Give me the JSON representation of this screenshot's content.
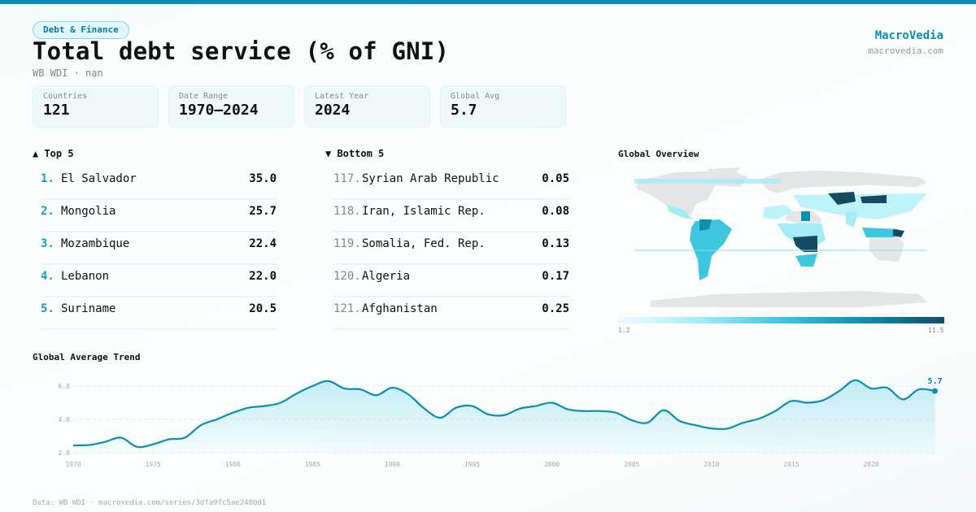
{
  "header": {
    "category": "Debt & Finance",
    "title": "Total debt service (% of GNI)",
    "subtitle": "WB WDI · nan",
    "brand": "MacroVedia",
    "brand_url": "macrovedia.com"
  },
  "stats": [
    {
      "label": "Countries",
      "value": "121"
    },
    {
      "label": "Date Range",
      "value": "1970–2024"
    },
    {
      "label": "Latest Year",
      "value": "2024"
    },
    {
      "label": "Global Avg",
      "value": "5.7"
    }
  ],
  "top": {
    "title": "▲ Top 5",
    "items": [
      {
        "rank": "1.",
        "name": "El Salvador",
        "value": "35.0"
      },
      {
        "rank": "2.",
        "name": "Mongolia",
        "value": "25.7"
      },
      {
        "rank": "3.",
        "name": "Mozambique",
        "value": "22.4"
      },
      {
        "rank": "4.",
        "name": "Lebanon",
        "value": "22.0"
      },
      {
        "rank": "5.",
        "name": "Suriname",
        "value": "20.5"
      }
    ]
  },
  "bottom": {
    "title": "▼ Bottom 5",
    "items": [
      {
        "rank": "117.",
        "name": "Syrian Arab Republic",
        "value": "0.05"
      },
      {
        "rank": "118.",
        "name": "Iran, Islamic Rep.",
        "value": "0.08"
      },
      {
        "rank": "119.",
        "name": "Somalia, Fed. Rep.",
        "value": "0.13"
      },
      {
        "rank": "120.",
        "name": "Algeria",
        "value": "0.17"
      },
      {
        "rank": "121.",
        "name": "Afghanistan",
        "value": "0.25"
      }
    ]
  },
  "map": {
    "title": "Global Overview",
    "legend_min": "1.2",
    "legend_max": "11.5",
    "colors": [
      "#f0fcfe",
      "#a6ecf8",
      "#3fc6df",
      "#0e8fae",
      "#154b62"
    ],
    "no_data": "#e4e6e8"
  },
  "chart_data": {
    "type": "area",
    "title": "Global Average Trend",
    "x": [
      1970,
      1971,
      1972,
      1973,
      1974,
      1975,
      1976,
      1977,
      1978,
      1979,
      1980,
      1981,
      1982,
      1983,
      1984,
      1985,
      1986,
      1987,
      1988,
      1989,
      1990,
      1991,
      1992,
      1993,
      1994,
      1995,
      1996,
      1997,
      1998,
      1999,
      2000,
      2001,
      2002,
      2003,
      2004,
      2005,
      2006,
      2007,
      2008,
      2009,
      2010,
      2011,
      2012,
      2013,
      2014,
      2015,
      2016,
      2017,
      2018,
      2019,
      2020,
      2021,
      2022,
      2023,
      2024
    ],
    "y": [
      2.43,
      2.46,
      2.65,
      2.9,
      2.35,
      2.5,
      2.8,
      2.9,
      3.65,
      4.0,
      4.4,
      4.7,
      4.8,
      5.0,
      5.55,
      6.0,
      6.3,
      5.85,
      5.8,
      5.45,
      5.9,
      5.5,
      4.65,
      4.1,
      4.7,
      4.8,
      4.3,
      4.25,
      4.65,
      4.8,
      5.0,
      4.6,
      4.5,
      4.5,
      4.4,
      3.95,
      3.8,
      4.55,
      3.9,
      3.65,
      3.45,
      3.45,
      3.8,
      4.05,
      4.5,
      5.1,
      5.0,
      5.15,
      5.7,
      6.35,
      5.85,
      5.9,
      5.2,
      5.8,
      5.7
    ],
    "yticks": [
      "2.0",
      "4.0",
      "6.0"
    ],
    "xticks": [
      "1970",
      "1975",
      "1980",
      "1985",
      "1990",
      "1995",
      "2000",
      "2005",
      "2010",
      "2015",
      "2020"
    ],
    "last_label": "5.7",
    "ylim": [
      2.0,
      6.0
    ],
    "grid": true,
    "color": "#0a8fb3"
  },
  "footer": "Data: WB WDI · macrovedia.com/series/3dfa9fc5ae240bd1"
}
